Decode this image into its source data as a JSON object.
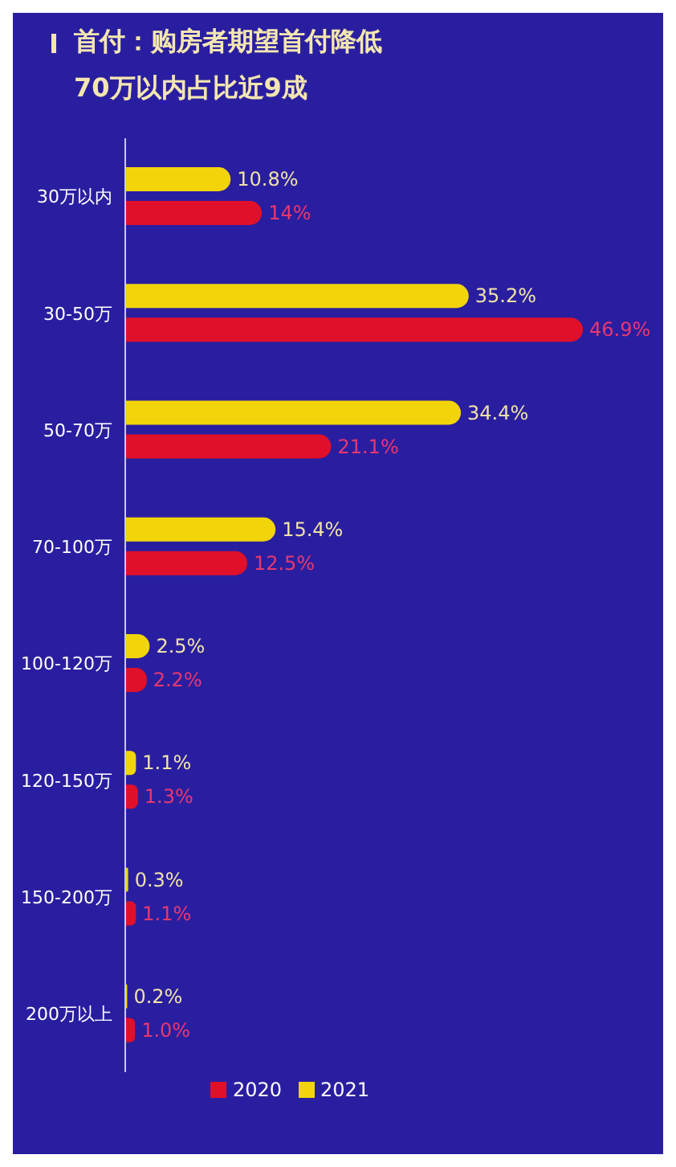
{
  "chart_data": {
    "type": "bar",
    "orientation": "horizontal",
    "title": "首付：购房者期望首付降低",
    "subtitle": "70万以内占比近9成",
    "categories": [
      "30万以内",
      "30-50万",
      "50-70万",
      "70-100万",
      "100-120万",
      "120-150万",
      "150-200万",
      "200万以上"
    ],
    "series": [
      {
        "name": "2021",
        "color": "#f2d40a",
        "values": [
          10.8,
          35.2,
          34.4,
          15.4,
          2.5,
          1.1,
          0.3,
          0.2
        ],
        "value_labels": [
          "10.8%",
          "35.2%",
          "34.4%",
          "15.4%",
          "2.5%",
          "1.1%",
          "0.3%",
          "0.2%"
        ]
      },
      {
        "name": "2020",
        "color": "#e0102a",
        "values": [
          14,
          46.9,
          21.1,
          12.5,
          2.2,
          1.3,
          1.1,
          1.0
        ],
        "value_labels": [
          "14%",
          "46.9%",
          "21.1%",
          "12.5%",
          "2.2%",
          "1.3%",
          "1.1%",
          "1.0%"
        ]
      }
    ],
    "legend": "bottom"
  }
}
